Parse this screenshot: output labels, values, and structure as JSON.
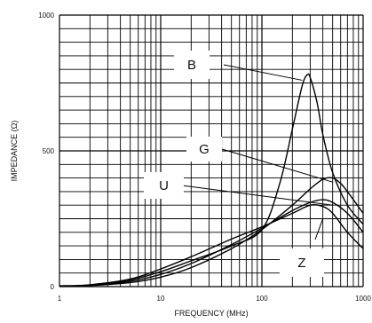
{
  "chart_data": {
    "type": "line",
    "title": "",
    "xlabel": "FREQUENCY (MHz)",
    "ylabel": "IMPEDANCE (Ω)",
    "x_scale": "log",
    "xlim": [
      1,
      1000
    ],
    "ylim": [
      0,
      1000
    ],
    "x_ticks": [
      1,
      10,
      100,
      1000
    ],
    "x_tick_labels": [
      "1",
      "10",
      "100",
      "1000"
    ],
    "y_ticks": [
      0,
      500,
      1000
    ],
    "y_tick_labels": [
      "0",
      "500",
      "1000"
    ],
    "grid": true,
    "series": [
      {
        "name": "B",
        "x": [
          1,
          2,
          5,
          10,
          20,
          50,
          100,
          150,
          200,
          250,
          280,
          300,
          350,
          400,
          500,
          700,
          1000
        ],
        "y": [
          2,
          5,
          25,
          55,
          95,
          150,
          210,
          380,
          580,
          740,
          780,
          770,
          680,
          560,
          420,
          300,
          230
        ]
      },
      {
        "name": "G",
        "x": [
          1,
          2,
          5,
          10,
          20,
          50,
          100,
          200,
          300,
          400,
          500,
          600,
          700,
          1000
        ],
        "y": [
          2,
          4,
          15,
          35,
          70,
          140,
          210,
          300,
          360,
          395,
          400,
          380,
          350,
          270
        ]
      },
      {
        "name": "U",
        "x": [
          1,
          2,
          5,
          10,
          20,
          50,
          100,
          200,
          300,
          400,
          500,
          700,
          1000
        ],
        "y": [
          2,
          5,
          20,
          45,
          85,
          155,
          215,
          280,
          310,
          320,
          310,
          270,
          200
        ]
      },
      {
        "name": "Z",
        "x": [
          1,
          2,
          5,
          10,
          20,
          50,
          100,
          200,
          300,
          400,
          500,
          700,
          1000
        ],
        "y": [
          3,
          7,
          28,
          65,
          110,
          175,
          220,
          270,
          300,
          295,
          270,
          200,
          140
        ]
      }
    ],
    "curve_labels": [
      {
        "text": "B",
        "box_x": 215,
        "box_y": 60
      },
      {
        "text": "G",
        "box_x": 230,
        "box_y": 115
      },
      {
        "text": "U",
        "box_x": 185,
        "box_y": 160
      },
      {
        "text": "Z",
        "box_x": 335,
        "box_y": 243
      }
    ],
    "leader_lines": [
      {
        "label": "B",
        "from_x": 220,
        "from_y": 75,
        "to_x": 320,
        "to_y": 700
      },
      {
        "label": "G",
        "from_x": 240,
        "from_y": 290,
        "to_x": 350,
        "to_y": 240
      },
      {
        "label": "U",
        "from_x": 230,
        "from_y": 460,
        "to_x": 420,
        "to_y": 225
      },
      {
        "label": "Z",
        "from_x": 500,
        "from_y": 190,
        "to_x": 320,
        "to_y": 280
      }
    ]
  }
}
